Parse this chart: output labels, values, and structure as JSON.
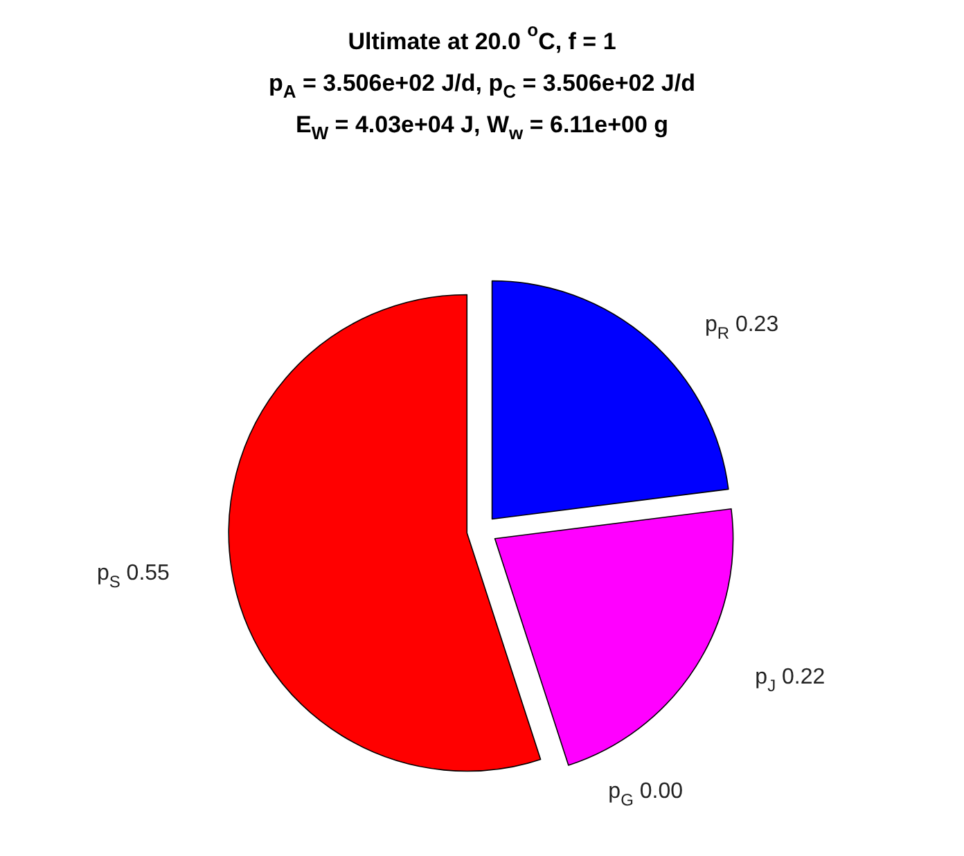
{
  "chart_data": {
    "type": "pie",
    "title": "Ultimate at 20.0 $^{o}$C, f = 1\np$_{A}$ = 3.506e+02 J/d, p$_{C}$ = 3.506e+02 J/d\nE$_{W}$ = 4.03e+04 J, W$_{w}$ = 6.11e+00 g",
    "categories": [
      "p$_{R}$",
      "p$_{J}$",
      "p$_{G}$",
      "p$_{S}$"
    ],
    "values": [
      0.23,
      0.22,
      0.0,
      0.55
    ],
    "value_labels": [
      "0.23",
      "0.22",
      "0.00",
      "0.55"
    ],
    "colors": [
      "#0000ff",
      "#ff00ff",
      "#00ff00",
      "#ff0000"
    ]
  }
}
